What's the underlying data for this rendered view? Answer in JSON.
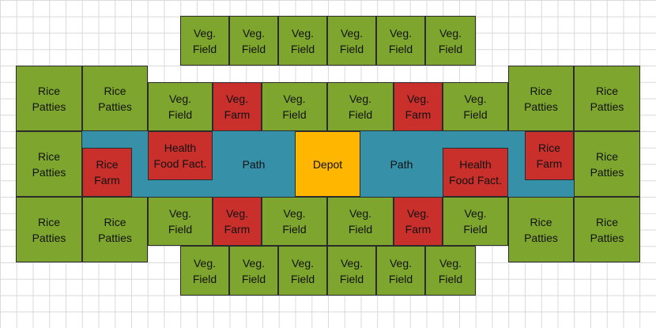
{
  "colors": {
    "field": "#7ea62e",
    "farm": "#c9302c",
    "path": "#3590a8",
    "depot": "#ffb600",
    "grid": "#d9d9d9",
    "border": "#2b2b2b"
  },
  "labels": {
    "veg_field": "Veg.\nField",
    "veg_farm": "Veg.\nFarm",
    "rice_patties": "Rice\nPatties",
    "rice_farm": "Rice\nFarm",
    "health_food_fact": "Health\nFood Fact.",
    "path": "Path",
    "depot": "Depot"
  },
  "tiles": [
    {
      "kind": "veg_field",
      "label": "Veg.\nField"
    },
    {
      "kind": "veg_field",
      "label": "Veg.\nField"
    },
    {
      "kind": "veg_field",
      "label": "Veg.\nField"
    },
    {
      "kind": "veg_field",
      "label": "Veg.\nField"
    },
    {
      "kind": "veg_field",
      "label": "Veg.\nField"
    },
    {
      "kind": "veg_field",
      "label": "Veg.\nField"
    },
    {
      "kind": "rice_patties",
      "label": "Rice\nPatties"
    },
    {
      "kind": "rice_patties",
      "label": "Rice\nPatties"
    },
    {
      "kind": "veg_field",
      "label": "Veg.\nField"
    },
    {
      "kind": "veg_farm",
      "label": "Veg.\nFarm"
    },
    {
      "kind": "veg_field",
      "label": "Veg.\nField"
    },
    {
      "kind": "veg_field",
      "label": "Veg.\nField"
    },
    {
      "kind": "veg_farm",
      "label": "Veg.\nFarm"
    },
    {
      "kind": "veg_field",
      "label": "Veg.\nField"
    },
    {
      "kind": "rice_patties",
      "label": "Rice\nPatties"
    },
    {
      "kind": "rice_patties",
      "label": "Rice\nPatties"
    },
    {
      "kind": "rice_patties",
      "label": "Rice\nPatties"
    },
    {
      "kind": "rice_farm",
      "label": "Rice\nFarm"
    },
    {
      "kind": "health_food_fact",
      "label": "Health\nFood Fact."
    },
    {
      "kind": "depot",
      "label": "Depot"
    },
    {
      "kind": "health_food_fact",
      "label": "Health\nFood Fact."
    },
    {
      "kind": "rice_farm",
      "label": "Rice\nFarm"
    },
    {
      "kind": "rice_patties",
      "label": "Rice\nPatties"
    },
    {
      "kind": "rice_patties",
      "label": "Rice\nPatties"
    },
    {
      "kind": "rice_patties",
      "label": "Rice\nPatties"
    },
    {
      "kind": "veg_field",
      "label": "Veg.\nField"
    },
    {
      "kind": "veg_farm",
      "label": "Veg.\nFarm"
    },
    {
      "kind": "veg_field",
      "label": "Veg.\nField"
    },
    {
      "kind": "veg_field",
      "label": "Veg.\nField"
    },
    {
      "kind": "veg_farm",
      "label": "Veg.\nFarm"
    },
    {
      "kind": "veg_field",
      "label": "Veg.\nField"
    },
    {
      "kind": "rice_patties",
      "label": "Rice\nPatties"
    },
    {
      "kind": "rice_patties",
      "label": "Rice\nPatties"
    },
    {
      "kind": "veg_field",
      "label": "Veg.\nField"
    },
    {
      "kind": "veg_field",
      "label": "Veg.\nField"
    },
    {
      "kind": "veg_field",
      "label": "Veg.\nField"
    },
    {
      "kind": "veg_field",
      "label": "Veg.\nField"
    },
    {
      "kind": "veg_field",
      "label": "Veg.\nField"
    },
    {
      "kind": "veg_field",
      "label": "Veg.\nField"
    }
  ]
}
